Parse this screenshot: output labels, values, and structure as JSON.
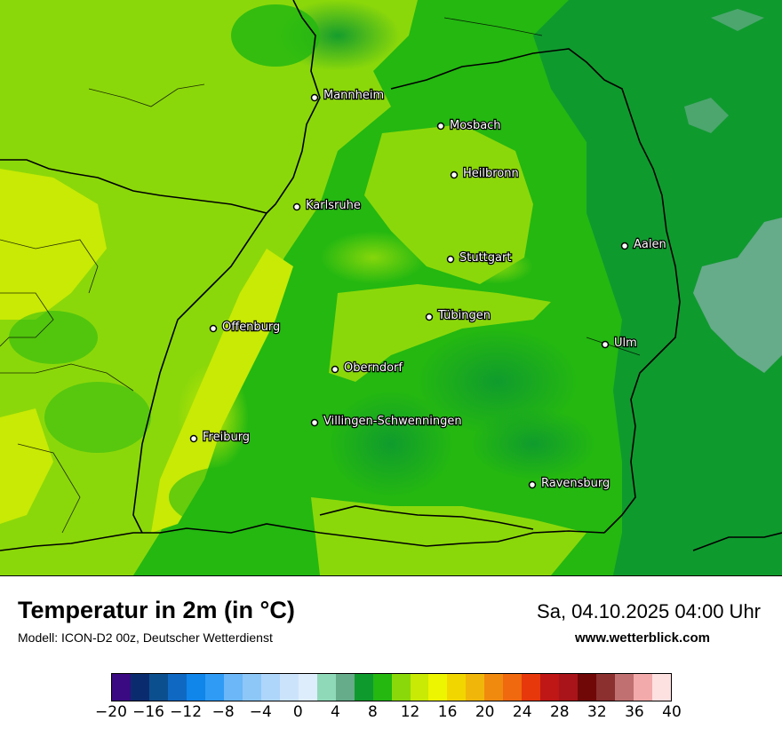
{
  "map": {
    "cities": [
      {
        "name": "Mannheim"
      },
      {
        "name": "Mosbach"
      },
      {
        "name": "Heilbronn"
      },
      {
        "name": "Karlsruhe"
      },
      {
        "name": "Aalen"
      },
      {
        "name": "Stuttgart"
      },
      {
        "name": "Tübingen"
      },
      {
        "name": "Offenburg"
      },
      {
        "name": "Ulm"
      },
      {
        "name": "Oberndorf"
      },
      {
        "name": "Villingen-Schwenningen"
      },
      {
        "name": "Freiburg"
      },
      {
        "name": "Ravensburg"
      }
    ]
  },
  "header": {
    "title": "Temperatur in 2m (in °C)",
    "subtitle": "Modell: ICON-D2 00z, Deutscher Wetterdienst",
    "datetime": "Sa, 04.10.2025 04:00 Uhr",
    "website": "www.wetterblick.com"
  },
  "legend": {
    "colors": [
      "#3a0a82",
      "#0a2c6e",
      "#0c4f8f",
      "#0f68c2",
      "#1085ea",
      "#2f9bf5",
      "#6bb7f7",
      "#8dc7f8",
      "#aed6fa",
      "#cce4fb",
      "#deedfc",
      "#8fd9b8",
      "#66ab8a",
      "#0f9a2e",
      "#24b811",
      "#8bd80a",
      "#c8ea04",
      "#edf500",
      "#f2d600",
      "#f0b70a",
      "#f08a0f",
      "#f0690e",
      "#e6380b",
      "#bf1616",
      "#a81419",
      "#700808",
      "#8b2f2f",
      "#c07070",
      "#f2aaaa",
      "#fde0e0"
    ],
    "ticks": [
      "−20",
      "−16",
      "−12",
      "−8",
      "−4",
      "0",
      "4",
      "8",
      "12",
      "16",
      "20",
      "24",
      "28",
      "32",
      "36",
      "40"
    ]
  }
}
